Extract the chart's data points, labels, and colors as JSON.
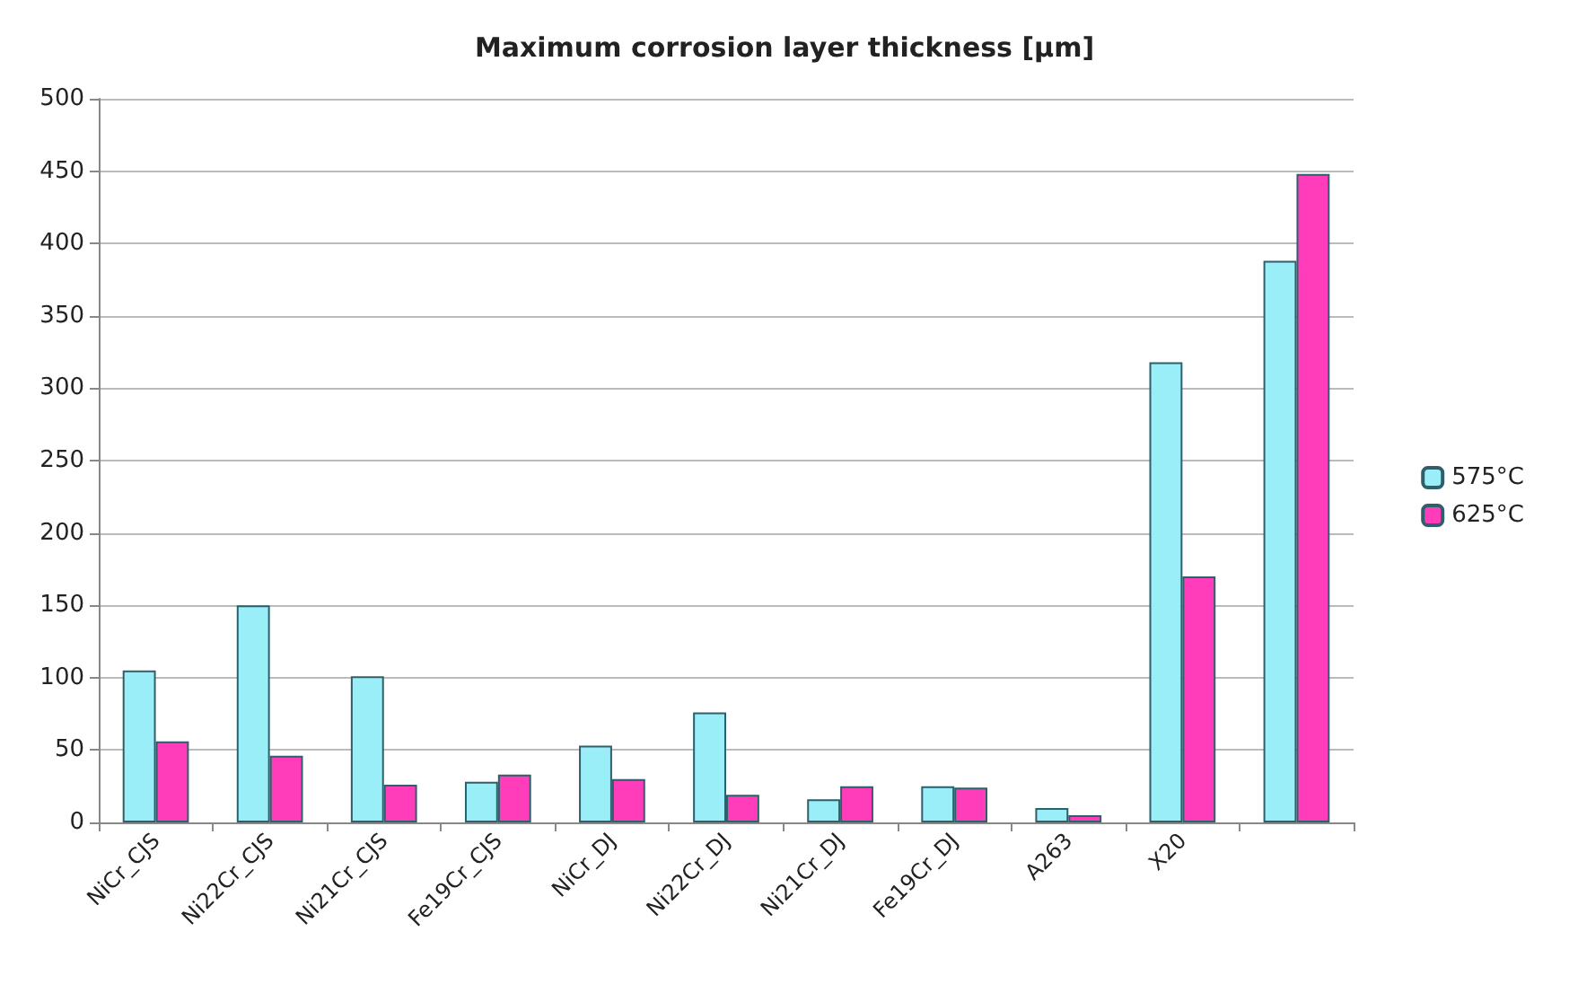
{
  "chart_data": {
    "type": "bar",
    "title": "Maximum corrosion layer thickness [µm]",
    "categories": [
      "NiCr_CJS",
      "Ni22Cr_CJS",
      "Ni21Cr_CJS",
      "Fe19Cr_CJS",
      "NiCr_DJ",
      "Ni22Cr_DJ",
      "Ni21Cr_DJ",
      "Fe19Cr_DJ",
      "A263",
      "X20",
      null
    ],
    "series": [
      {
        "name": "575°C",
        "color": "#99eef8",
        "values": [
          105,
          150,
          101,
          28,
          53,
          76,
          16,
          25,
          10,
          318,
          388
        ]
      },
      {
        "name": "625°C",
        "color": "#ff3dbb",
        "values": [
          56,
          46,
          26,
          33,
          30,
          19,
          25,
          24,
          5,
          170,
          448
        ]
      }
    ],
    "ylim": [
      0,
      500
    ],
    "yticks": [
      0,
      50,
      100,
      150,
      200,
      250,
      300,
      350,
      400,
      450,
      500
    ],
    "grid": "y",
    "legend": "right"
  }
}
